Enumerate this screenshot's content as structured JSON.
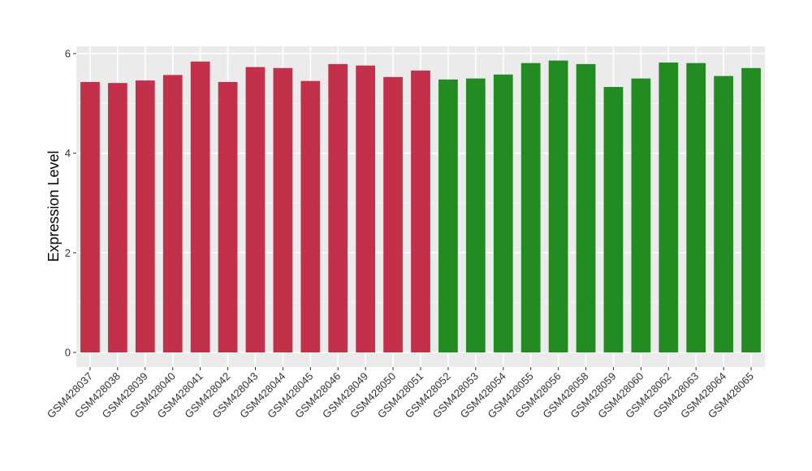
{
  "chart_data": {
    "type": "bar",
    "title": "",
    "xlabel": "",
    "ylabel": "Expression Level",
    "ylim": [
      0,
      6.4
    ],
    "yticks": [
      0,
      2,
      4,
      6
    ],
    "grid": true,
    "legend": "none",
    "panel_background": "#ebebeb",
    "categories": [
      "GSM428037",
      "GSM428038",
      "GSM428039",
      "GSM428040",
      "GSM428041",
      "GSM428042",
      "GSM428043",
      "GSM428044",
      "GSM428045",
      "GSM428046",
      "GSM428049",
      "GSM428050",
      "GSM428051",
      "GSM428052",
      "GSM428053",
      "GSM428054",
      "GSM428055",
      "GSM428056",
      "GSM428058",
      "GSM428059",
      "GSM428060",
      "GSM428062",
      "GSM428063",
      "GSM428064",
      "GSM428065"
    ],
    "values": [
      5.43,
      5.41,
      5.46,
      5.57,
      5.84,
      5.43,
      5.73,
      5.71,
      5.45,
      5.79,
      5.76,
      5.53,
      5.66,
      5.48,
      5.5,
      5.58,
      5.81,
      5.86,
      5.79,
      5.33,
      5.5,
      5.82,
      5.81,
      5.55,
      5.71
    ],
    "group_colors": [
      "#c33049",
      "#228b22"
    ],
    "bar_group": [
      0,
      0,
      0,
      0,
      0,
      0,
      0,
      0,
      0,
      0,
      0,
      0,
      0,
      1,
      1,
      1,
      1,
      1,
      1,
      1,
      1,
      1,
      1,
      1,
      1
    ]
  }
}
